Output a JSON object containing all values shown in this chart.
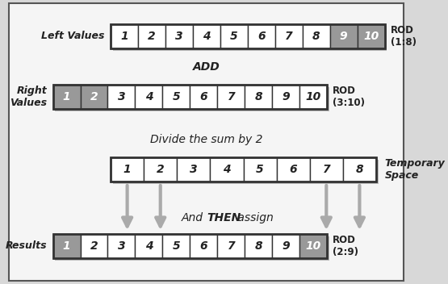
{
  "background_color": "#d8d8d8",
  "inner_bg": "#f0f0f0",
  "box_white": "#ffffff",
  "box_gray": "#999999",
  "box_edge": "#333333",
  "text_dark": "#222222",
  "arrow_color": "#aaaaaa",
  "row1": {
    "label": "Left Values",
    "numbers": [
      1,
      2,
      3,
      4,
      5,
      6,
      7,
      8,
      9,
      10
    ],
    "gray_indices": [
      8,
      9
    ],
    "rod_label": "ROD\n(1:8)",
    "label_side": "left"
  },
  "add_label": "ADD",
  "row2": {
    "label": "Right\nValues",
    "numbers": [
      1,
      2,
      3,
      4,
      5,
      6,
      7,
      8,
      9,
      10
    ],
    "gray_indices": [
      0,
      1
    ],
    "rod_label": "ROD\n(3:10)",
    "label_side": "left"
  },
  "divide_label": "Divide the sum by 2",
  "row3": {
    "label": "Temporary\nSpace",
    "numbers": [
      1,
      2,
      3,
      4,
      5,
      6,
      7,
      8
    ],
    "gray_indices": [],
    "rod_label": "",
    "label_side": "right"
  },
  "arrow_indices": [
    0,
    1,
    6,
    7
  ],
  "assign_label_pre": "And ",
  "assign_label_bold": "THEN",
  "assign_label_post": " assign",
  "row4": {
    "label": "Results",
    "numbers": [
      1,
      2,
      3,
      4,
      5,
      6,
      7,
      8,
      9,
      10
    ],
    "gray_indices": [
      0,
      9
    ],
    "rod_label": "ROD\n(2:9)",
    "label_side": "left"
  },
  "fig_w": 5.55,
  "fig_h": 3.52,
  "dpi": 100
}
